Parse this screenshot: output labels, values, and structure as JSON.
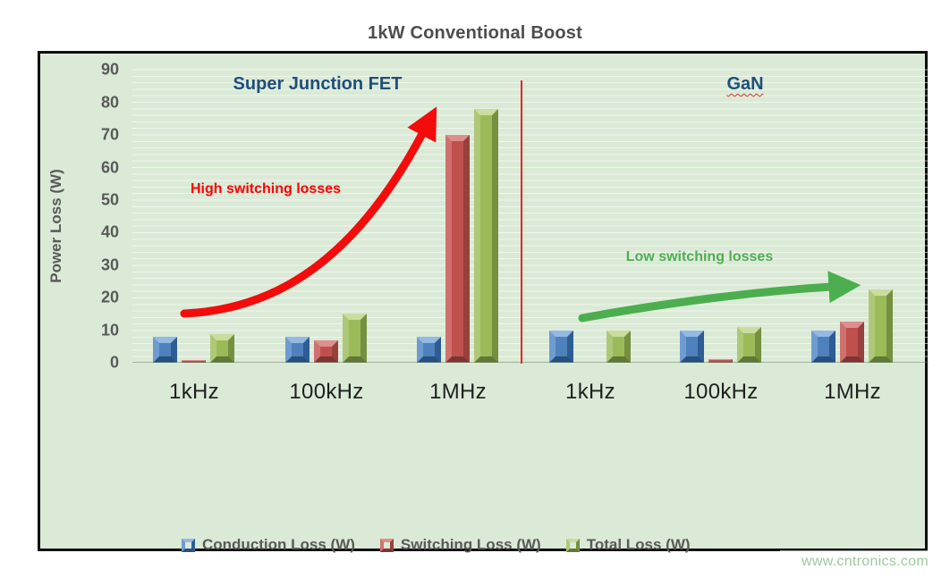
{
  "page": {
    "watermark": "www.cntronics.com"
  },
  "chart_data": {
    "type": "bar",
    "title": "1kW Conventional Boost",
    "ylabel": "Power Loss (W)",
    "ylim": [
      0,
      90
    ],
    "ytick_step": 10,
    "grid": "subtle horizontal minor gridlines on light green background",
    "legend_position": "bottom",
    "plot_bg_color": "#DBEAD7",
    "categories": [
      "1kHz",
      "100kHz",
      "1MHz",
      "1kHz",
      "100kHz",
      "1MHz"
    ],
    "series": [
      {
        "name": "Conduction Loss (W)",
        "color": "#4F81BD",
        "values": [
          8,
          8,
          8,
          10,
          10,
          10
        ]
      },
      {
        "name": "Switching Loss (W)",
        "color": "#C0504D",
        "values": [
          0.7,
          6.8,
          70,
          0,
          1,
          12.5
        ]
      },
      {
        "name": "Total Loss (W)",
        "color": "#9BBB59",
        "values": [
          8.7,
          15,
          78,
          10,
          11,
          22.5
        ]
      }
    ],
    "sections": [
      {
        "label": "Super Junction FET",
        "categories_span": [
          "1kHz",
          "100kHz",
          "1MHz"
        ],
        "annotation": "High switching losses",
        "annotation_color": "#FE0000",
        "arrow_color": "#F40B0B"
      },
      {
        "label": "GaN",
        "categories_span": [
          "1kHz",
          "100kHz",
          "1MHz"
        ],
        "annotation": "Low switching losses",
        "annotation_color": "#4FAE51",
        "arrow_color": "#4CAE4F"
      }
    ],
    "divider_color": "#E8241F"
  }
}
